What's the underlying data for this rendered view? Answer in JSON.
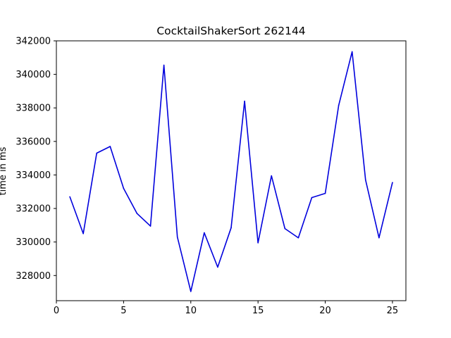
{
  "chart_data": {
    "type": "line",
    "title": "CocktailShakerSort 262144",
    "xlabel": "",
    "ylabel": "time in ms",
    "xlim": [
      0,
      26
    ],
    "ylim": [
      326500,
      342000
    ],
    "x_ticks": [
      0,
      5,
      10,
      15,
      20,
      25
    ],
    "y_ticks": [
      328000,
      330000,
      332000,
      334000,
      336000,
      338000,
      340000,
      342000
    ],
    "grid": false,
    "series": [
      {
        "color": "#0000dd",
        "x": [
          1,
          2,
          3,
          4,
          5,
          6,
          7,
          8,
          9,
          10,
          11,
          12,
          13,
          14,
          15,
          16,
          17,
          18,
          19,
          20,
          21,
          22,
          23,
          24,
          25
        ],
        "y": [
          332700,
          330500,
          335300,
          335700,
          333200,
          331700,
          330950,
          340550,
          330300,
          327050,
          330550,
          328500,
          330850,
          338400,
          329950,
          333950,
          330800,
          330250,
          332650,
          332900,
          338150,
          341350,
          333700,
          330250,
          333550
        ]
      }
    ]
  }
}
